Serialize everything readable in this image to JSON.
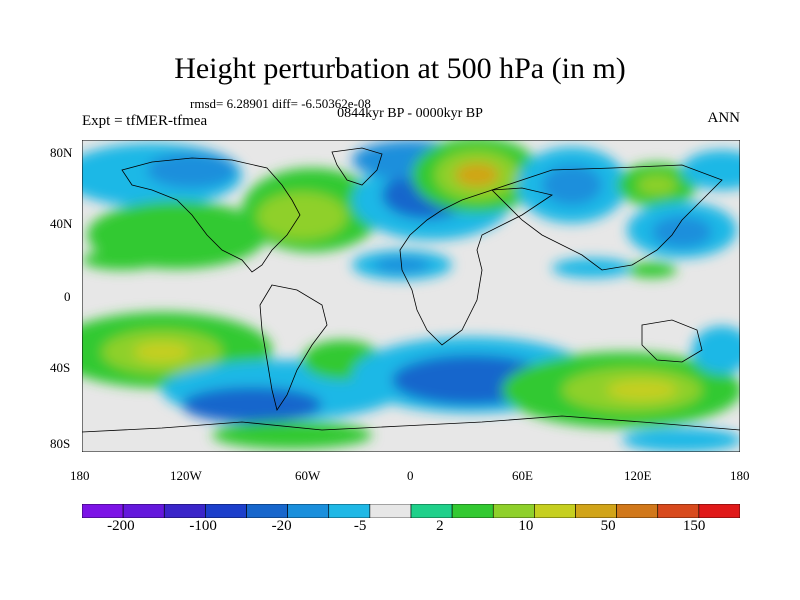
{
  "title": "Height perturbation at 500 hPa (in m)",
  "stats": "rmsd= 6.28901 diff= -6.50362e-08",
  "period": "0844kyr BP - 0000kyr BP",
  "experiment": "Expt = tfMER-tfmea",
  "season": "ANN",
  "lat_labels": [
    "80N",
    "40N",
    "0",
    "40S",
    "80S"
  ],
  "lon_labels": [
    "180",
    "120W",
    "60W",
    "0",
    "60E",
    "120E",
    "180"
  ],
  "colorbar": {
    "colors": [
      "#7c13e6",
      "#6418dc",
      "#3a25c9",
      "#1c3fcb",
      "#1766cc",
      "#1a8fdc",
      "#1fb8e6",
      "#e7e7e7",
      "#1fd08a",
      "#33c932",
      "#8fd02b",
      "#c6cf20",
      "#d1a419",
      "#d1781b",
      "#d84a1d",
      "#e01919"
    ],
    "labels": [
      "-200",
      "-100",
      "-20",
      "-5",
      "2",
      "10",
      "50",
      "150"
    ]
  }
}
